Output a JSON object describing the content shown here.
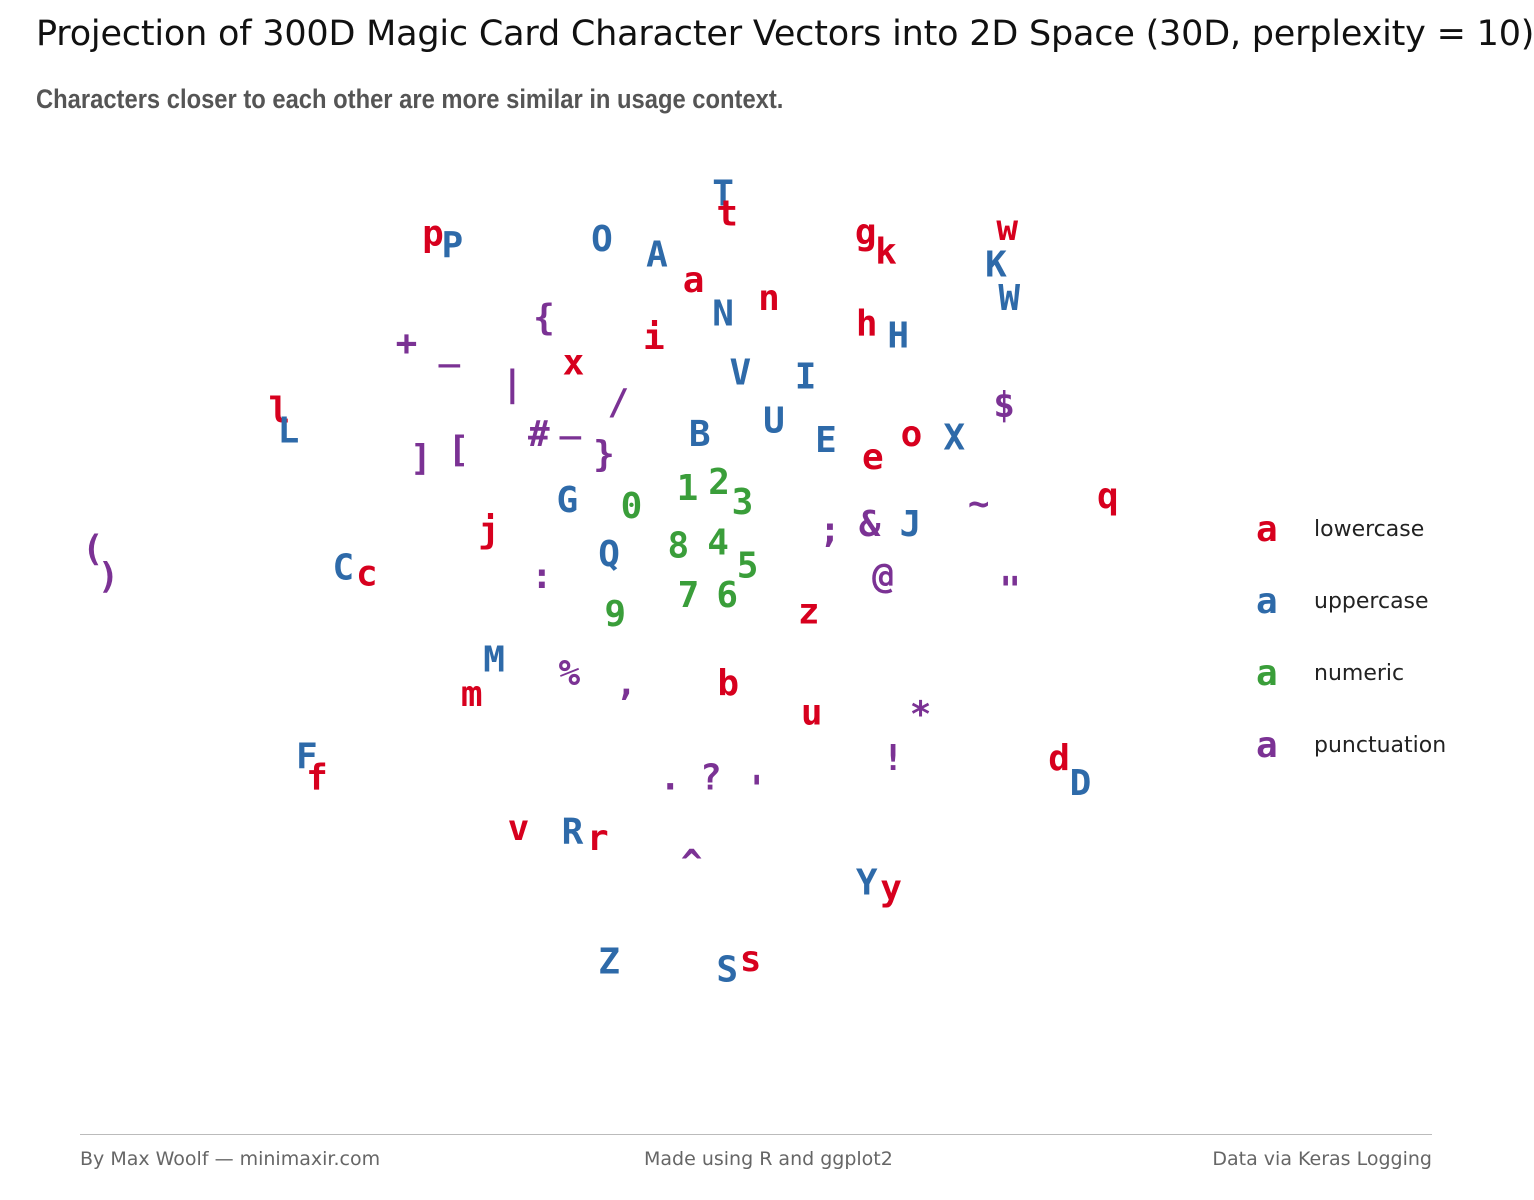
{
  "title": "Projection of 300D Magic Card Character Vectors into 2D Space (30D, perplexity = 10)",
  "subtitle": "Characters closer to each other are more similar in usage context.",
  "footer": {
    "left": "By Max Woolf — minimaxir.com",
    "center": "Made using R and ggplot2",
    "right": "Data via Keras Logging"
  },
  "legend": {
    "key_glyph": "a",
    "items": [
      {
        "label": "lowercase",
        "color": "#d7001e"
      },
      {
        "label": "uppercase",
        "color": "#2e6aa9"
      },
      {
        "label": "numeric",
        "color": "#3a9e3a"
      },
      {
        "label": "punctuation",
        "color": "#7b3294"
      }
    ]
  },
  "chart_data": {
    "type": "scatter",
    "title": "Projection of 300D Magic Card Character Vectors into 2D Space (30D, perplexity = 10)",
    "subtitle": "Characters closer to each other are more similar in usage context.",
    "xlabel": "",
    "ylabel": "",
    "xlim": [
      0,
      1
    ],
    "ylim": [
      0,
      1
    ],
    "grid": false,
    "axes": false,
    "legend_position": "right",
    "colors": {
      "lowercase": "#d7001e",
      "uppercase": "#2e6aa9",
      "numeric": "#3a9e3a",
      "punctuation": "#7b3294"
    },
    "points": [
      {
        "label": "T",
        "category": "uppercase",
        "x": 0.619,
        "y": 0.99
      },
      {
        "label": "t",
        "category": "lowercase",
        "x": 0.623,
        "y": 0.964
      },
      {
        "label": "p",
        "category": "lowercase",
        "x": 0.334,
        "y": 0.938
      },
      {
        "label": "P",
        "category": "uppercase",
        "x": 0.353,
        "y": 0.923
      },
      {
        "label": "O",
        "category": "uppercase",
        "x": 0.5,
        "y": 0.931
      },
      {
        "label": "A",
        "category": "uppercase",
        "x": 0.554,
        "y": 0.911
      },
      {
        "label": "g",
        "category": "lowercase",
        "x": 0.759,
        "y": 0.94
      },
      {
        "label": "k",
        "category": "lowercase",
        "x": 0.779,
        "y": 0.915
      },
      {
        "label": "w",
        "category": "lowercase",
        "x": 0.898,
        "y": 0.945
      },
      {
        "label": "K",
        "category": "uppercase",
        "x": 0.887,
        "y": 0.898
      },
      {
        "label": "W",
        "category": "uppercase",
        "x": 0.9,
        "y": 0.855
      },
      {
        "label": "a",
        "category": "lowercase",
        "x": 0.59,
        "y": 0.878
      },
      {
        "label": "n",
        "category": "lowercase",
        "x": 0.664,
        "y": 0.855
      },
      {
        "label": "N",
        "category": "uppercase",
        "x": 0.619,
        "y": 0.835
      },
      {
        "label": "{",
        "category": "punctuation",
        "x": 0.443,
        "y": 0.83
      },
      {
        "label": "h",
        "category": "lowercase",
        "x": 0.76,
        "y": 0.822
      },
      {
        "label": "H",
        "category": "uppercase",
        "x": 0.791,
        "y": 0.807
      },
      {
        "label": "i",
        "category": "lowercase",
        "x": 0.551,
        "y": 0.805
      },
      {
        "label": "+",
        "category": "punctuation",
        "x": 0.308,
        "y": 0.797
      },
      {
        "label": "_",
        "category": "punctuation",
        "x": 0.35,
        "y": 0.792
      },
      {
        "label": "x",
        "category": "lowercase",
        "x": 0.472,
        "y": 0.772
      },
      {
        "label": "V",
        "category": "uppercase",
        "x": 0.636,
        "y": 0.759
      },
      {
        "label": "I",
        "category": "uppercase",
        "x": 0.7,
        "y": 0.754
      },
      {
        "label": "|",
        "category": "punctuation",
        "x": 0.412,
        "y": 0.745
      },
      {
        "label": "/",
        "category": "punctuation",
        "x": 0.516,
        "y": 0.721
      },
      {
        "label": "$",
        "category": "punctuation",
        "x": 0.895,
        "y": 0.717
      },
      {
        "label": "l",
        "category": "lowercase",
        "x": 0.183,
        "y": 0.71
      },
      {
        "label": "L",
        "category": "uppercase",
        "x": 0.192,
        "y": 0.684
      },
      {
        "label": "U",
        "category": "uppercase",
        "x": 0.669,
        "y": 0.697
      },
      {
        "label": "_",
        "category": "punctuation",
        "x": 0.469,
        "y": 0.699
      },
      {
        "label": "#",
        "category": "punctuation",
        "x": 0.438,
        "y": 0.68
      },
      {
        "label": "B",
        "category": "uppercase",
        "x": 0.596,
        "y": 0.68
      },
      {
        "label": "o",
        "category": "lowercase",
        "x": 0.804,
        "y": 0.68
      },
      {
        "label": "X",
        "category": "uppercase",
        "x": 0.846,
        "y": 0.675
      },
      {
        "label": "E",
        "category": "uppercase",
        "x": 0.72,
        "y": 0.672
      },
      {
        "label": "]",
        "category": "punctuation",
        "x": 0.322,
        "y": 0.649
      },
      {
        "label": "[",
        "category": "punctuation",
        "x": 0.359,
        "y": 0.66
      },
      {
        "label": "}",
        "category": "punctuation",
        "x": 0.502,
        "y": 0.654
      },
      {
        "label": "e",
        "category": "lowercase",
        "x": 0.766,
        "y": 0.65
      },
      {
        "label": "2",
        "category": "numeric",
        "x": 0.615,
        "y": 0.618
      },
      {
        "label": "1",
        "category": "numeric",
        "x": 0.584,
        "y": 0.61
      },
      {
        "label": "q",
        "category": "lowercase",
        "x": 0.997,
        "y": 0.6
      },
      {
        "label": "3",
        "category": "numeric",
        "x": 0.638,
        "y": 0.592
      },
      {
        "label": "G",
        "category": "uppercase",
        "x": 0.466,
        "y": 0.595
      },
      {
        "label": "0",
        "category": "numeric",
        "x": 0.529,
        "y": 0.587
      },
      {
        "label": "~",
        "category": "punctuation",
        "x": 0.87,
        "y": 0.59
      },
      {
        "label": "j",
        "category": "lowercase",
        "x": 0.389,
        "y": 0.556
      },
      {
        "label": ";",
        "category": "punctuation",
        "x": 0.724,
        "y": 0.556
      },
      {
        "label": "&",
        "category": "punctuation",
        "x": 0.763,
        "y": 0.564
      },
      {
        "label": "J",
        "category": "uppercase",
        "x": 0.803,
        "y": 0.564
      },
      {
        "label": "4",
        "category": "numeric",
        "x": 0.614,
        "y": 0.54
      },
      {
        "label": "8",
        "category": "numeric",
        "x": 0.575,
        "y": 0.536
      },
      {
        "label": "Q",
        "category": "uppercase",
        "x": 0.507,
        "y": 0.525
      },
      {
        "label": "5",
        "category": "numeric",
        "x": 0.643,
        "y": 0.51
      },
      {
        "label": "(",
        "category": "punctuation",
        "x": 0.0,
        "y": 0.532
      },
      {
        "label": ")",
        "category": "punctuation",
        "x": 0.015,
        "y": 0.497
      },
      {
        "label": "C",
        "category": "uppercase",
        "x": 0.246,
        "y": 0.508
      },
      {
        "label": "c",
        "category": "lowercase",
        "x": 0.269,
        "y": 0.5
      },
      {
        "label": ":",
        "category": "punctuation",
        "x": 0.441,
        "y": 0.497
      },
      {
        "label": "@",
        "category": "punctuation",
        "x": 0.776,
        "y": 0.497
      },
      {
        "label": "7",
        "category": "numeric",
        "x": 0.585,
        "y": 0.472
      },
      {
        "label": "6",
        "category": "numeric",
        "x": 0.623,
        "y": 0.472
      },
      {
        "label": "\"",
        "category": "punctuation",
        "x": 0.901,
        "y": 0.479
      },
      {
        "label": "9",
        "category": "numeric",
        "x": 0.513,
        "y": 0.448
      },
      {
        "label": "z",
        "category": "lowercase",
        "x": 0.703,
        "y": 0.451
      },
      {
        "label": "M",
        "category": "uppercase",
        "x": 0.394,
        "y": 0.389
      },
      {
        "label": "%",
        "category": "punctuation",
        "x": 0.468,
        "y": 0.372
      },
      {
        "label": ",",
        "category": "punctuation",
        "x": 0.524,
        "y": 0.359
      },
      {
        "label": "b",
        "category": "lowercase",
        "x": 0.624,
        "y": 0.359
      },
      {
        "label": "m",
        "category": "lowercase",
        "x": 0.372,
        "y": 0.345
      },
      {
        "label": "u",
        "category": "lowercase",
        "x": 0.706,
        "y": 0.321
      },
      {
        "label": "*",
        "category": "punctuation",
        "x": 0.813,
        "y": 0.318
      },
      {
        "label": "F",
        "category": "uppercase",
        "x": 0.21,
        "y": 0.264
      },
      {
        "label": "!",
        "category": "punctuation",
        "x": 0.786,
        "y": 0.262
      },
      {
        "label": "d",
        "category": "lowercase",
        "x": 0.949,
        "y": 0.262
      },
      {
        "label": "f",
        "category": "lowercase",
        "x": 0.22,
        "y": 0.237
      },
      {
        "label": "D",
        "category": "uppercase",
        "x": 0.97,
        "y": 0.23
      },
      {
        "label": ".",
        "category": "punctuation",
        "x": 0.567,
        "y": 0.237
      },
      {
        "label": "?",
        "category": "punctuation",
        "x": 0.607,
        "y": 0.237
      },
      {
        "label": "'",
        "category": "punctuation",
        "x": 0.652,
        "y": 0.222
      },
      {
        "label": "v",
        "category": "lowercase",
        "x": 0.418,
        "y": 0.172
      },
      {
        "label": "R",
        "category": "uppercase",
        "x": 0.471,
        "y": 0.167
      },
      {
        "label": "r",
        "category": "lowercase",
        "x": 0.496,
        "y": 0.159
      },
      {
        "label": "^",
        "category": "punctuation",
        "x": 0.588,
        "y": 0.127
      },
      {
        "label": "Y",
        "category": "uppercase",
        "x": 0.76,
        "y": 0.102
      },
      {
        "label": "y",
        "category": "lowercase",
        "x": 0.784,
        "y": 0.095
      },
      {
        "label": "Z",
        "category": "uppercase",
        "x": 0.507,
        "y": 0.0
      },
      {
        "label": "s",
        "category": "lowercase",
        "x": 0.646,
        "y": 0.003
      },
      {
        "label": "S",
        "category": "uppercase",
        "x": 0.623,
        "y": -0.01
      }
    ]
  }
}
